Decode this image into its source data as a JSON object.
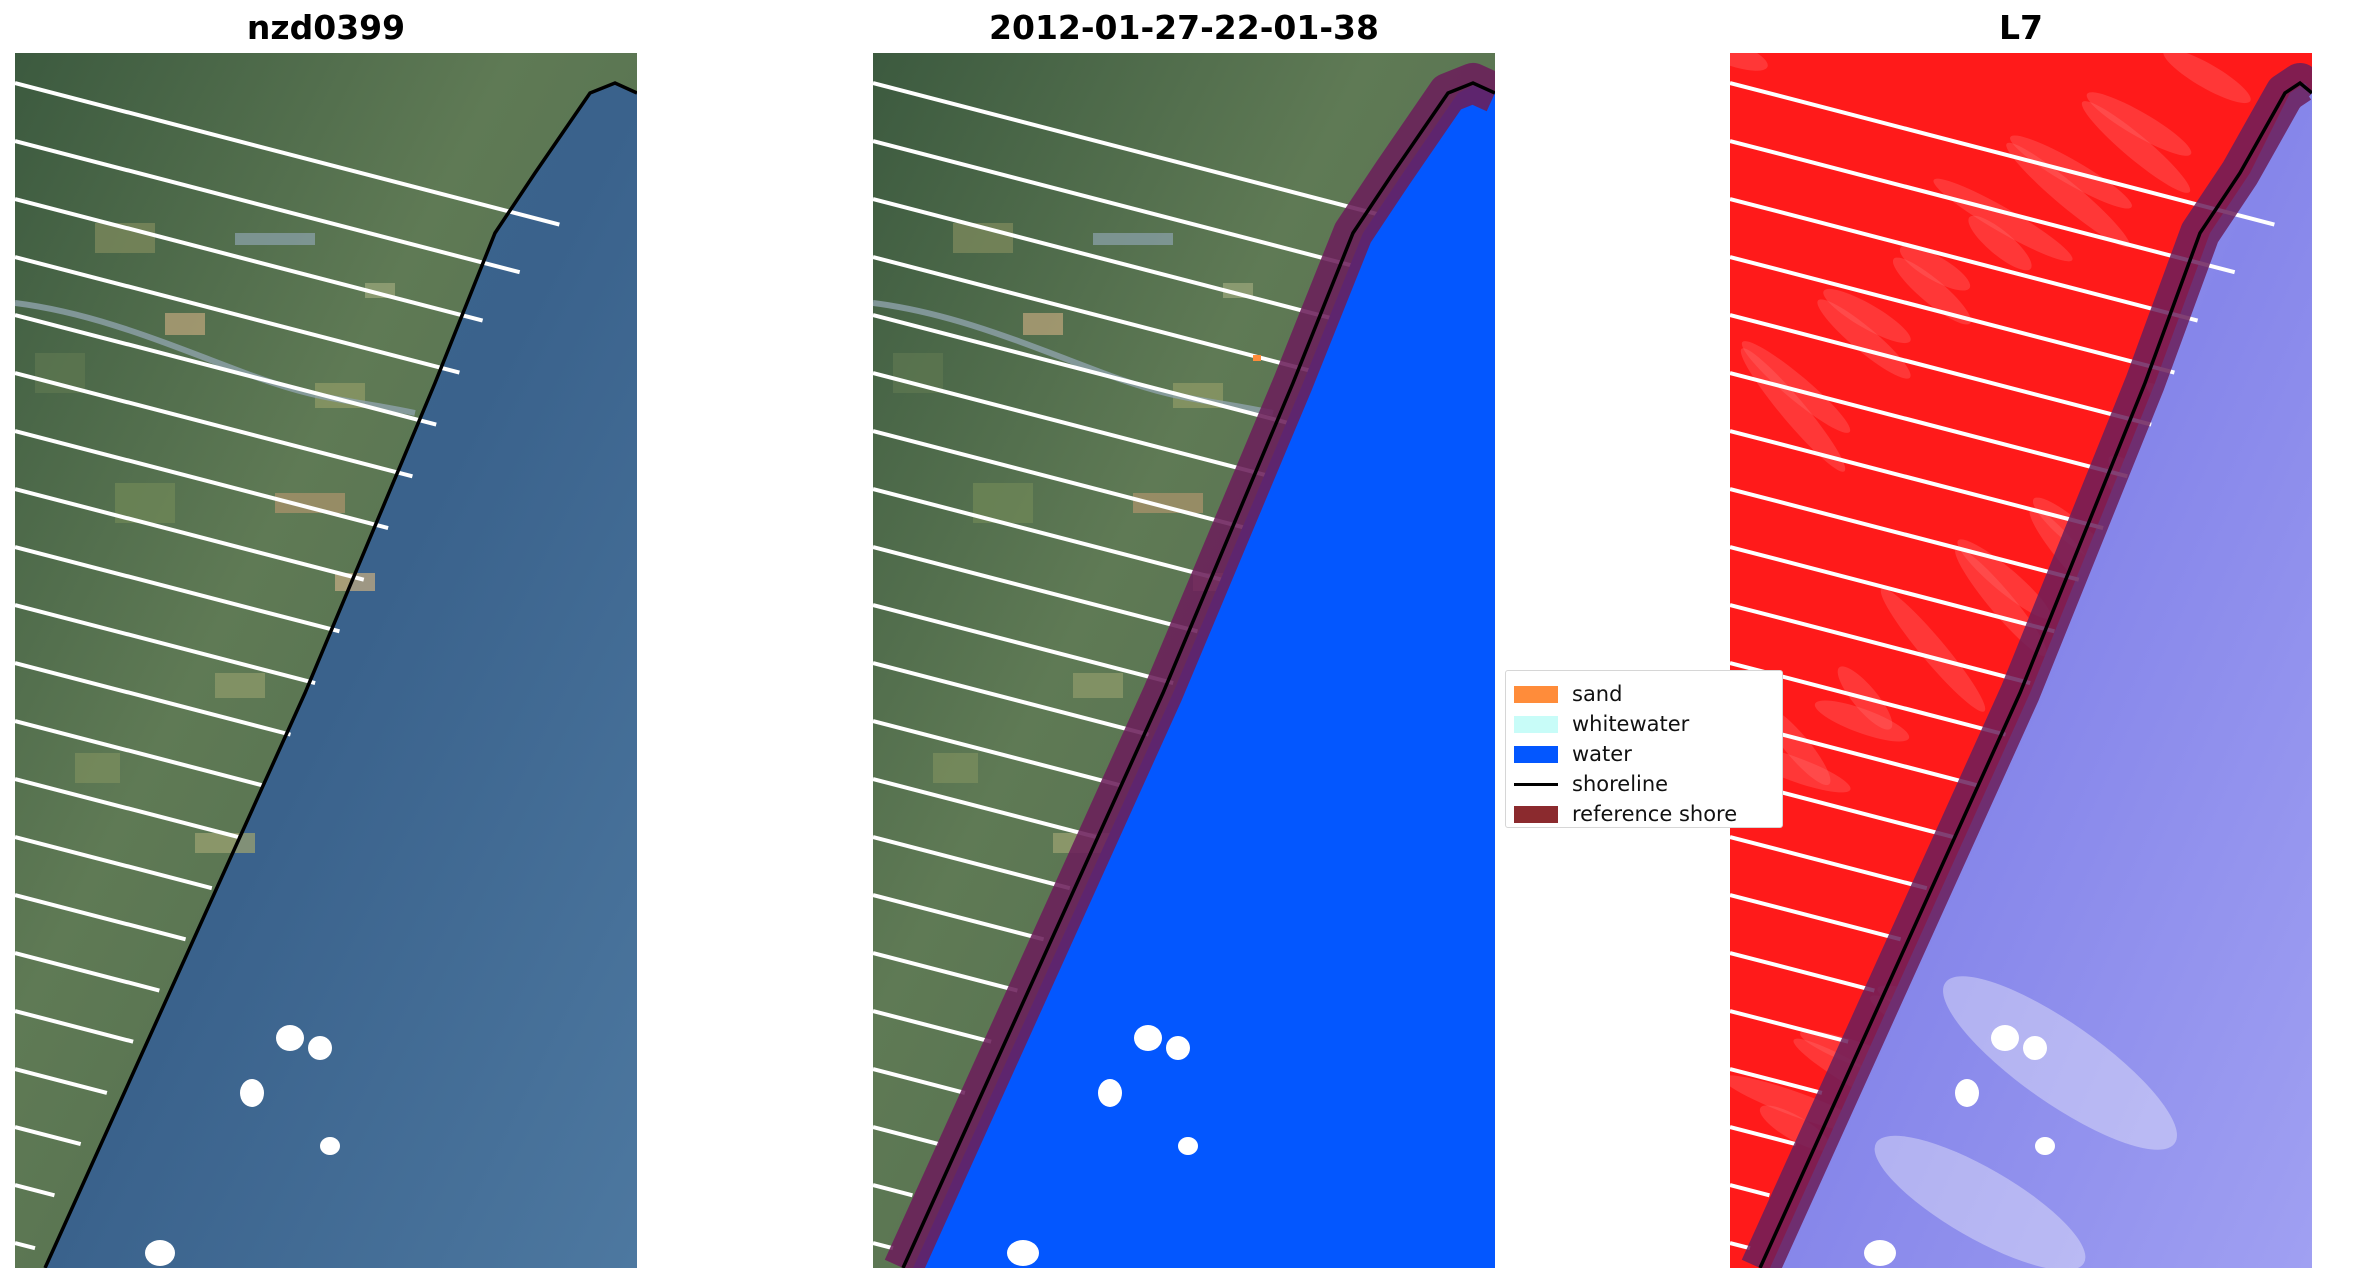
{
  "panels": [
    {
      "title": "nzd0399"
    },
    {
      "title": "2012-01-27-22-01-38"
    },
    {
      "title": "L7"
    }
  ],
  "legend": {
    "items": [
      {
        "label": "sand",
        "color": "#ff8c3a",
        "kind": "patch"
      },
      {
        "label": "whitewater",
        "color": "#c8fcf8",
        "kind": "patch"
      },
      {
        "label": "water",
        "color": "#0357ff",
        "kind": "patch"
      },
      {
        "label": "shoreline",
        "color": "#000000",
        "kind": "line"
      },
      {
        "label": "reference shore",
        "color": "#8b2a2e",
        "kind": "patch"
      }
    ]
  },
  "colors": {
    "land_rgb": "#4f6a4c",
    "sea_rgb": "#3d6590",
    "water_class": "#0357ff",
    "land_index": "#ff1a1a",
    "sea_index": "#9090f0",
    "reference_buffer": "#6b1f5a",
    "stripe": "#ffffff",
    "cloud": "#ffffff"
  }
}
